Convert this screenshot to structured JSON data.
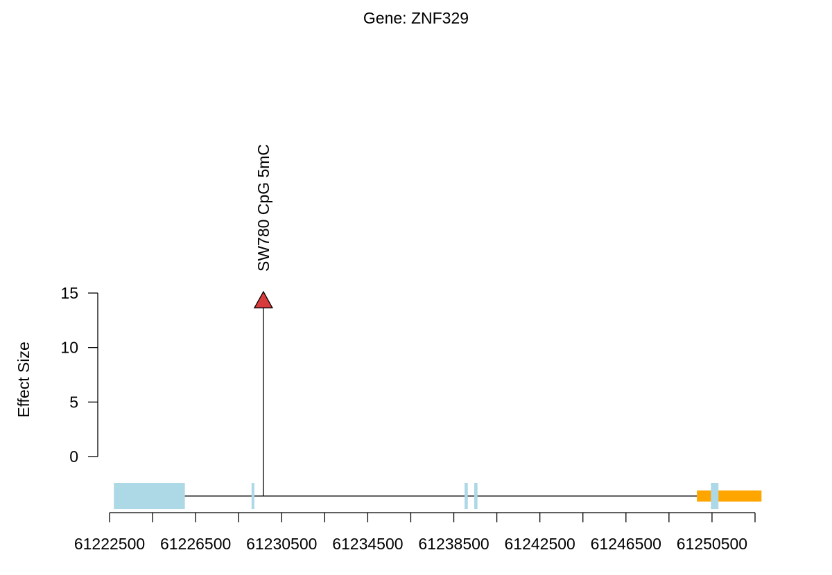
{
  "chart_data": {
    "type": "lollipop",
    "title": "Gene: ZNF329",
    "ylabel": "Effect Size",
    "xlabel": "",
    "xlim": [
      61222500,
      61252500
    ],
    "ylim": [
      0,
      15
    ],
    "x_ticks": [
      61222500,
      61224500,
      61226500,
      61228500,
      61230500,
      61232500,
      61234500,
      61236500,
      61238500,
      61240500,
      61242500,
      61244500,
      61246500,
      61248500,
      61250500,
      61252500
    ],
    "x_tick_labels": [
      "61222500",
      "61226500",
      "61230500",
      "61234500",
      "61238500",
      "61242500",
      "61246500",
      "61250500"
    ],
    "x_tick_label_values": [
      61222500,
      61226500,
      61230500,
      61234500,
      61238500,
      61242500,
      61246500,
      61250500
    ],
    "y_ticks": [
      0,
      5,
      10,
      15
    ],
    "y_tick_labels": [
      "0",
      "5",
      "10",
      "15"
    ],
    "points": [
      {
        "x": 61229650,
        "y": 14.3,
        "label": "SW780 CpG 5mC",
        "color": "#d83b3b",
        "shape": "triangle"
      }
    ],
    "gene_model": {
      "line_start": 61222500,
      "line_end": 61252500,
      "exons": [
        {
          "start": 61222700,
          "end": 61226000,
          "kind": "exon"
        },
        {
          "start": 61229100,
          "end": 61229200,
          "kind": "exon"
        },
        {
          "start": 61239000,
          "end": 61239150,
          "kind": "exon"
        },
        {
          "start": 61239450,
          "end": 61239600,
          "kind": "exon"
        },
        {
          "start": 61250450,
          "end": 61250800,
          "kind": "exon"
        }
      ],
      "utr": [
        {
          "start": 61249800,
          "end": 61252800,
          "kind": "utr"
        }
      ],
      "exon_color": "#add8e6",
      "utr_color": "#ffa500"
    },
    "grid": false,
    "legend": "none"
  }
}
